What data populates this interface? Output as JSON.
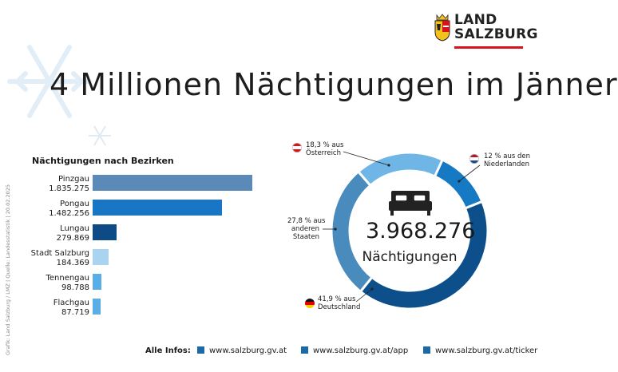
{
  "logo": {
    "line1": "LAND",
    "line2": "SALZBURG"
  },
  "title": "4 Millionen Nächtigungen im Jänner",
  "side_credit": "Grafik: Land Salzburg / LMZ | Quelle: Landesstatistik | 20.02.2025",
  "chart_data": [
    {
      "type": "bar",
      "title": "Nächtigungen nach Bezirken",
      "orientation": "horizontal",
      "categories": [
        "Pinzgau",
        "Pongau",
        "Lungau",
        "Stadt Salzburg",
        "Tennengau",
        "Flachgau"
      ],
      "value_labels": [
        "1.835.275",
        "1.482.256",
        "279.869",
        "184.369",
        "98.788",
        "87.719"
      ],
      "values": [
        1835275,
        1482256,
        279869,
        184369,
        98788,
        87719
      ],
      "colors": [
        "#5b8ab8",
        "#1976c4",
        "#0e4a86",
        "#a9d3ef",
        "#5aaee6",
        "#5aaee6"
      ],
      "xlim": [
        0,
        1835275
      ]
    },
    {
      "type": "pie",
      "donut": true,
      "center_value": "3.968.276",
      "center_label": "Nächtigungen",
      "labels": [
        "18,3 % aus Österreich",
        "12 % aus den Niederlanden",
        "41,9 % aus Deutschland",
        "27,8 % aus anderen Staaten"
      ],
      "label_lines": [
        [
          "18,3 % aus",
          "Österreich"
        ],
        [
          "12 % aus den",
          "Niederlanden"
        ],
        [
          "41,9 % aus",
          "Deutschland"
        ],
        [
          "27,8 % aus",
          "anderen",
          "Staaten"
        ]
      ],
      "values": [
        18.3,
        12.0,
        41.9,
        27.8
      ],
      "colors": [
        "#6fb6e7",
        "#1579c4",
        "#0d4f8b",
        "#4a8bbd"
      ]
    }
  ],
  "footer": {
    "label": "Alle Infos:",
    "links": [
      "www.salzburg.gv.at",
      "www.salzburg.gv.at/app",
      "www.salzburg.gv.at/ticker"
    ]
  }
}
